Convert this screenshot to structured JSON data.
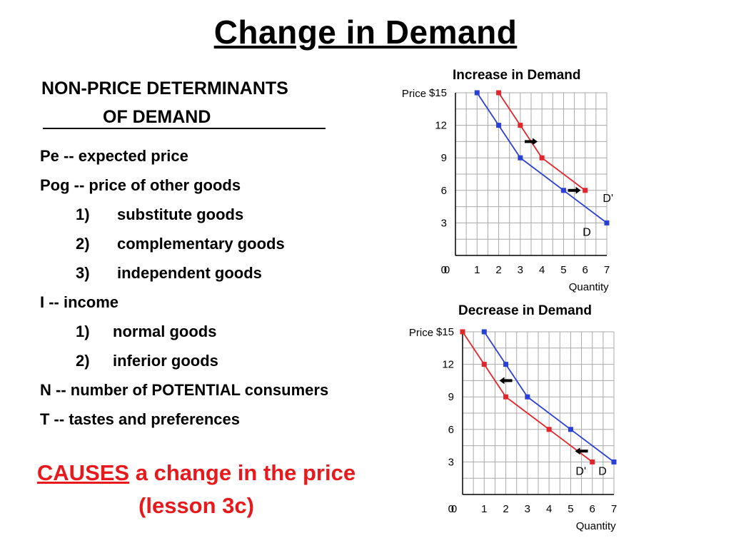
{
  "title": "Change in Demand",
  "list": {
    "heading_line1": "NON-PRICE DETERMINANTS",
    "heading_line2": "OF DEMAND",
    "items": [
      {
        "text": "Pe -- expected price"
      },
      {
        "text": "Pog -- price of other goods"
      },
      {
        "num": "1)",
        "text": "substitute goods"
      },
      {
        "num": "2)",
        "text": "complementary goods"
      },
      {
        "num": "3)",
        "text": "independent goods"
      },
      {
        "text": "I -- income"
      },
      {
        "num": "1)",
        "text": "normal goods"
      },
      {
        "num": "2)",
        "text": "inferior goods"
      },
      {
        "text": "N -- number of POTENTIAL consumers"
      },
      {
        "text": "T -- tastes and preferences"
      }
    ]
  },
  "causes": {
    "keyword": "CAUSES",
    "rest": " a change in the price",
    "line2": "(lesson 3c)"
  },
  "colors": {
    "red": "#e8191d",
    "original_curve": "#2a3fd6",
    "new_curve": "#e0262b",
    "grid": "#a9a9a9"
  },
  "chart_data": [
    {
      "type": "line",
      "title": "Increase in Demand",
      "xlabel": "Quantity",
      "ylabel": "Price",
      "x_ticks": [
        "0",
        "1",
        "2",
        "3",
        "4",
        "5",
        "6",
        "7"
      ],
      "y_ticks": [
        "0",
        "3",
        "6",
        "9",
        "12",
        "$15"
      ],
      "xlim": [
        0,
        7
      ],
      "ylim": [
        0,
        15
      ],
      "grid": true,
      "series": [
        {
          "name": "D",
          "color": "#2a3fd6",
          "points": [
            [
              1,
              15
            ],
            [
              2,
              12
            ],
            [
              3,
              9
            ],
            [
              5,
              6
            ],
            [
              7,
              3
            ]
          ]
        },
        {
          "name": "D'",
          "color": "#e0262b",
          "points": [
            [
              2,
              15
            ],
            [
              3,
              12
            ],
            [
              4,
              9
            ],
            [
              6,
              6
            ]
          ]
        }
      ],
      "arrows": [
        {
          "direction": "right",
          "at": [
            3.5,
            10.5
          ]
        },
        {
          "direction": "right",
          "at": [
            5.5,
            6
          ]
        }
      ]
    },
    {
      "type": "line",
      "title": "Decrease in Demand",
      "xlabel": "Quantity",
      "ylabel": "Price",
      "x_ticks": [
        "0",
        "1",
        "2",
        "3",
        "4",
        "5",
        "6",
        "7"
      ],
      "y_ticks": [
        "0",
        "3",
        "6",
        "9",
        "12",
        "$15"
      ],
      "xlim": [
        0,
        7
      ],
      "ylim": [
        0,
        15
      ],
      "grid": true,
      "series": [
        {
          "name": "D",
          "color": "#2a3fd6",
          "points": [
            [
              1,
              15
            ],
            [
              2,
              12
            ],
            [
              3,
              9
            ],
            [
              5,
              6
            ],
            [
              7,
              3
            ]
          ]
        },
        {
          "name": "D'",
          "color": "#e0262b",
          "points": [
            [
              0,
              15
            ],
            [
              1,
              12
            ],
            [
              2,
              9
            ],
            [
              4,
              6
            ],
            [
              6,
              3
            ]
          ]
        }
      ],
      "arrows": [
        {
          "direction": "left",
          "at": [
            2,
            10.5
          ]
        },
        {
          "direction": "left",
          "at": [
            5.5,
            4
          ]
        }
      ]
    }
  ]
}
